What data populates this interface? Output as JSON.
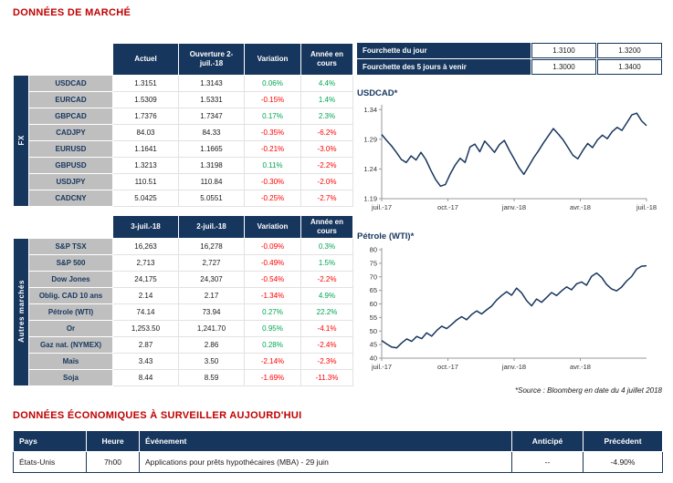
{
  "titles": {
    "market": "DONNÉES DE MARCHÉ",
    "economic": "DONNÉES ÉCONOMIQUES À SURVEILLER AUJOURD'HUI"
  },
  "colors": {
    "navy": "#17365D",
    "title_red": "#C00000",
    "positive_green": "#00A651",
    "negative_red": "#FF0000",
    "label_gray": "#BFBFBF"
  },
  "fx_table": {
    "side_label": "FX",
    "headers": [
      "Actuel",
      "Ouverture 2-juil.-18",
      "Variation",
      "Année en cours"
    ],
    "rows": [
      {
        "label": "USDCAD",
        "c1": "1.3151",
        "c2": "1.3143",
        "variation": "0.06%",
        "ytd": "4.4%"
      },
      {
        "label": "EURCAD",
        "c1": "1.5309",
        "c2": "1.5331",
        "variation": "-0.15%",
        "ytd": "1.4%"
      },
      {
        "label": "GBPCAD",
        "c1": "1.7376",
        "c2": "1.7347",
        "variation": "0.17%",
        "ytd": "2.3%"
      },
      {
        "label": "CADJPY",
        "c1": "84.03",
        "c2": "84.33",
        "variation": "-0.35%",
        "ytd": "-6.2%"
      },
      {
        "label": "EURUSD",
        "c1": "1.1641",
        "c2": "1.1665",
        "variation": "-0.21%",
        "ytd": "-3.0%"
      },
      {
        "label": "GBPUSD",
        "c1": "1.3213",
        "c2": "1.3198",
        "variation": "0.11%",
        "ytd": "-2.2%"
      },
      {
        "label": "USDJPY",
        "c1": "110.51",
        "c2": "110.84",
        "variation": "-0.30%",
        "ytd": "-2.0%"
      },
      {
        "label": "CADCNY",
        "c1": "5.0425",
        "c2": "5.0551",
        "variation": "-0.25%",
        "ytd": "-2.7%"
      }
    ]
  },
  "markets_table": {
    "side_label": "Autres marchés",
    "headers": [
      "3-juil.-18",
      "2-juil.-18",
      "Variation",
      "Année en cours"
    ],
    "rows": [
      {
        "label": "S&P TSX",
        "c1": "16,263",
        "c2": "16,278",
        "variation": "-0.09%",
        "ytd": "0.3%"
      },
      {
        "label": "S&P 500",
        "c1": "2,713",
        "c2": "2,727",
        "variation": "-0.49%",
        "ytd": "1.5%"
      },
      {
        "label": "Dow Jones",
        "c1": "24,175",
        "c2": "24,307",
        "variation": "-0.54%",
        "ytd": "-2.2%"
      },
      {
        "label": "Oblig. CAD 10 ans",
        "c1": "2.14",
        "c2": "2.17",
        "variation": "-1.34%",
        "ytd": "4.9%"
      },
      {
        "label": "Pétrole (WTI)",
        "c1": "74.14",
        "c2": "73.94",
        "variation": "0.27%",
        "ytd": "22.2%"
      },
      {
        "label": "Or",
        "c1": "1,253.50",
        "c2": "1,241.70",
        "variation": "0.95%",
        "ytd": "-4.1%"
      },
      {
        "label": "Gaz nat. (NYMEX)",
        "c1": "2.87",
        "c2": "2.86",
        "variation": "0.28%",
        "ytd": "-2.4%"
      },
      {
        "label": "Maïs",
        "c1": "3.43",
        "c2": "3.50",
        "variation": "-2.14%",
        "ytd": "-2.3%"
      },
      {
        "label": "Soja",
        "c1": "8.44",
        "c2": "8.59",
        "variation": "-1.69%",
        "ytd": "-11.3%"
      }
    ]
  },
  "ranges": [
    {
      "label": "Fourchette du jour",
      "low": "1.3100",
      "high": "1.3200"
    },
    {
      "label": "Fourchette des 5 jours à venir",
      "low": "1.3000",
      "high": "1.3400"
    }
  ],
  "source_note": "*Source : Bloomberg en date du 4 juillet 2018",
  "chart_data": [
    {
      "type": "line",
      "title": "USDCAD*",
      "ylim": [
        1.19,
        1.345
      ],
      "yticks": [
        1.19,
        1.24,
        1.29,
        1.34
      ],
      "xticks": [
        {
          "pos": 0,
          "label": "juil.-17"
        },
        {
          "pos": 0.25,
          "label": "oct.-17"
        },
        {
          "pos": 0.5,
          "label": "janv.-18"
        },
        {
          "pos": 0.75,
          "label": "avr.-18"
        },
        {
          "pos": 1,
          "label": "juil.-18"
        }
      ],
      "values": [
        1.298,
        1.288,
        1.279,
        1.268,
        1.256,
        1.251,
        1.262,
        1.255,
        1.268,
        1.256,
        1.238,
        1.222,
        1.211,
        1.214,
        1.232,
        1.247,
        1.258,
        1.251,
        1.277,
        1.282,
        1.269,
        1.287,
        1.278,
        1.268,
        1.281,
        1.288,
        1.272,
        1.257,
        1.242,
        1.231,
        1.245,
        1.259,
        1.271,
        1.284,
        1.296,
        1.308,
        1.299,
        1.289,
        1.276,
        1.263,
        1.257,
        1.271,
        1.283,
        1.276,
        1.289,
        1.297,
        1.291,
        1.303,
        1.31,
        1.305,
        1.318,
        1.331,
        1.334,
        1.321,
        1.313
      ]
    },
    {
      "type": "line",
      "title": "Pétrole (WTI)*",
      "ylim": [
        40,
        80
      ],
      "yticks": [
        40,
        45,
        50,
        55,
        60,
        65,
        70,
        75,
        80
      ],
      "xticks": [
        {
          "pos": 0,
          "label": "juil.-17"
        },
        {
          "pos": 0.25,
          "label": "oct.-17"
        },
        {
          "pos": 0.5,
          "label": "janv.-18"
        },
        {
          "pos": 0.75,
          "label": "avr.-18"
        }
      ],
      "values": [
        46.5,
        45.2,
        44.1,
        43.8,
        45.6,
        47.1,
        46.2,
        48.0,
        47.2,
        49.3,
        48.1,
        50.2,
        51.8,
        50.9,
        52.4,
        54.1,
        55.3,
        54.2,
        56.1,
        57.4,
        56.3,
        57.8,
        59.2,
        61.4,
        63.1,
        64.5,
        63.2,
        65.8,
        64.1,
        61.2,
        59.3,
        61.8,
        60.6,
        62.4,
        64.2,
        63.1,
        64.8,
        66.3,
        65.2,
        67.4,
        68.1,
        66.9,
        70.2,
        71.4,
        69.8,
        67.2,
        65.5,
        64.8,
        66.2,
        68.4,
        70.1,
        72.8,
        73.9,
        74.1
      ]
    }
  ],
  "econ_table": {
    "headers": [
      "Pays",
      "Heure",
      "Événement",
      "Anticipé",
      "Précédent"
    ],
    "rows": [
      {
        "pays": "États-Unis",
        "heure": "7h00",
        "evenement": "Applications pour prêts hypothécaires (MBA) - 29 juin",
        "anticipe": "--",
        "precedent": "-4.90%"
      }
    ]
  }
}
